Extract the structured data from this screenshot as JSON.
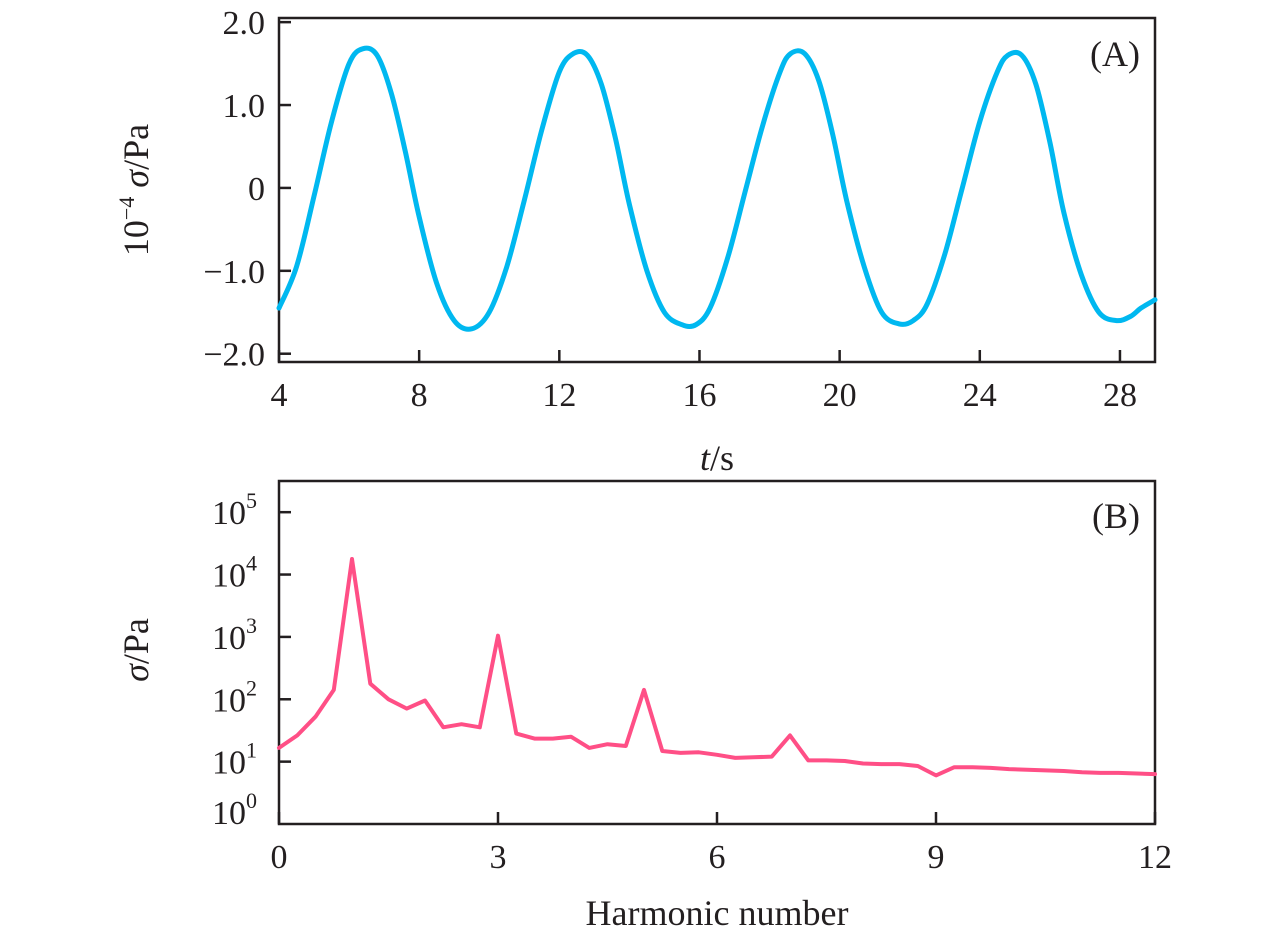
{
  "chart_data": [
    {
      "type": "line",
      "panel_label": "(A)",
      "title": "",
      "xlabel": "t/s",
      "ylabel": "10⁻⁴ σ/Pa",
      "xlim": [
        4,
        29
      ],
      "ylim": [
        -2.1,
        2.05
      ],
      "x_ticks": [
        4,
        8,
        12,
        16,
        20,
        24,
        28
      ],
      "y_ticks": [
        2.0,
        1.0,
        0,
        -1.0,
        -2.0
      ],
      "y_tick_labels": [
        "2.0",
        "1.0",
        "0",
        "−1.0",
        "−2.0"
      ],
      "grid": false,
      "color": "#00b8f0",
      "series": [
        {
          "x": [
            4.0,
            4.5,
            5.0,
            5.5,
            6.0,
            6.4,
            6.8,
            7.2,
            7.6,
            8.0,
            8.5,
            9.0,
            9.5,
            10.0,
            10.5,
            11.0,
            11.5,
            12.0,
            12.4,
            12.8,
            13.2,
            13.6,
            14.0,
            14.5,
            15.0,
            15.5,
            15.9,
            16.3,
            16.8,
            17.3,
            17.8,
            18.3,
            18.6,
            19.0,
            19.4,
            19.8,
            20.2,
            20.7,
            21.2,
            21.7,
            22.1,
            22.5,
            23.0,
            23.5,
            24.0,
            24.5,
            24.8,
            25.2,
            25.6,
            26.0,
            26.4,
            26.9,
            27.4,
            27.9,
            28.3,
            28.6,
            29.0
          ],
          "y": [
            -1.45,
            -0.95,
            -0.1,
            0.8,
            1.5,
            1.68,
            1.6,
            1.15,
            0.45,
            -0.35,
            -1.15,
            -1.6,
            -1.7,
            -1.5,
            -0.95,
            -0.15,
            0.7,
            1.4,
            1.62,
            1.6,
            1.25,
            0.6,
            -0.2,
            -1.0,
            -1.5,
            -1.65,
            -1.65,
            -1.45,
            -0.85,
            -0.05,
            0.75,
            1.4,
            1.62,
            1.62,
            1.3,
            0.65,
            -0.15,
            -0.95,
            -1.5,
            -1.64,
            -1.6,
            -1.4,
            -0.8,
            0.0,
            0.8,
            1.4,
            1.6,
            1.6,
            1.25,
            0.55,
            -0.3,
            -1.05,
            -1.5,
            -1.6,
            -1.55,
            -1.45,
            -1.35
          ]
        }
      ]
    },
    {
      "type": "line",
      "panel_label": "(B)",
      "title": "",
      "xlabel": "Harmonic number",
      "ylabel": "σ/Pa",
      "xlim": [
        0,
        12
      ],
      "ylim": [
        0,
        5.5
      ],
      "log_scale_y": true,
      "x_ticks": [
        0,
        3,
        6,
        9,
        12
      ],
      "y_tick_labels": [
        {
          "base": "10",
          "exp": "0"
        },
        {
          "base": "10",
          "exp": "1"
        },
        {
          "base": "10",
          "exp": "2"
        },
        {
          "base": "10",
          "exp": "3"
        },
        {
          "base": "10",
          "exp": "4"
        },
        {
          "base": "10",
          "exp": "5"
        }
      ],
      "grid": false,
      "color": "#ff4f86",
      "series": [
        {
          "x": [
            0,
            0.25,
            0.5,
            0.75,
            1.0,
            1.25,
            1.5,
            1.75,
            2.0,
            2.25,
            2.5,
            2.75,
            3.0,
            3.25,
            3.5,
            3.75,
            4.0,
            4.25,
            4.5,
            4.75,
            5.0,
            5.25,
            5.5,
            5.75,
            6.0,
            6.25,
            6.5,
            6.75,
            7.0,
            7.25,
            7.5,
            7.75,
            8.0,
            8.25,
            8.5,
            8.75,
            9.0,
            9.25,
            9.5,
            9.75,
            10.0,
            10.25,
            10.5,
            10.75,
            11.0,
            11.25,
            11.5,
            11.75,
            12.0
          ],
          "y": [
            1.22,
            1.42,
            1.72,
            2.15,
            4.25,
            2.25,
            2.0,
            1.85,
            1.98,
            1.55,
            1.6,
            1.55,
            3.02,
            1.45,
            1.37,
            1.37,
            1.4,
            1.22,
            1.28,
            1.25,
            2.15,
            1.17,
            1.14,
            1.15,
            1.11,
            1.06,
            1.07,
            1.08,
            1.42,
            1.02,
            1.02,
            1.01,
            0.97,
            0.96,
            0.96,
            0.93,
            0.78,
            0.91,
            0.91,
            0.9,
            0.88,
            0.87,
            0.86,
            0.85,
            0.83,
            0.82,
            0.82,
            0.81,
            0.8
          ]
        }
      ]
    }
  ]
}
